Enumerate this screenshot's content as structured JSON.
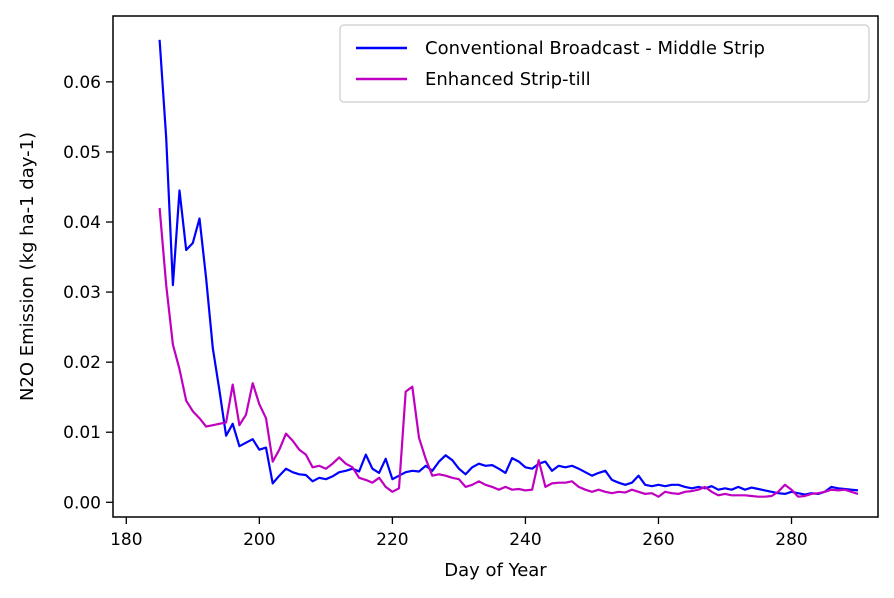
{
  "chart_data": {
    "type": "line",
    "xlabel": "Day of Year",
    "ylabel": "N2O Emission (kg ha-1 day-1)",
    "xlim": [
      178,
      293
    ],
    "ylim": [
      -0.0021,
      0.0694
    ],
    "xticks": [
      180,
      200,
      220,
      240,
      260,
      280
    ],
    "yticks": [
      0.0,
      0.01,
      0.02,
      0.03,
      0.04,
      0.05,
      0.06
    ],
    "ytick_labels": [
      "0.00",
      "0.01",
      "0.02",
      "0.03",
      "0.04",
      "0.05",
      "0.06"
    ],
    "legend_position": "top-right",
    "grid": false,
    "series": [
      {
        "name": "Conventional Broadcast - Middle Strip",
        "color": "#0000ff",
        "x": [
          185,
          186,
          187,
          188,
          189,
          190,
          191,
          192,
          193,
          194,
          195,
          196,
          197,
          198,
          199,
          200,
          201,
          202,
          203,
          204,
          205,
          206,
          207,
          208,
          209,
          210,
          211,
          212,
          213,
          214,
          215,
          216,
          217,
          218,
          219,
          220,
          221,
          222,
          223,
          224,
          225,
          226,
          227,
          228,
          229,
          230,
          231,
          232,
          233,
          234,
          235,
          236,
          237,
          238,
          239,
          240,
          241,
          242,
          243,
          244,
          245,
          246,
          247,
          248,
          249,
          250,
          251,
          252,
          253,
          254,
          255,
          256,
          257,
          258,
          259,
          260,
          261,
          262,
          263,
          264,
          265,
          266,
          267,
          268,
          269,
          270,
          271,
          272,
          273,
          274,
          275,
          276,
          277,
          278,
          279,
          280,
          281,
          282,
          283,
          284,
          285,
          286,
          287,
          288,
          289,
          290
        ],
        "y": [
          0.066,
          0.052,
          0.031,
          0.0445,
          0.036,
          0.037,
          0.0405,
          0.032,
          0.022,
          0.016,
          0.0095,
          0.0112,
          0.008,
          0.0085,
          0.009,
          0.0075,
          0.0078,
          0.0027,
          0.0038,
          0.0048,
          0.0043,
          0.004,
          0.0039,
          0.003,
          0.0035,
          0.0033,
          0.0037,
          0.0043,
          0.0045,
          0.0048,
          0.0044,
          0.0068,
          0.0048,
          0.0042,
          0.0062,
          0.0033,
          0.0038,
          0.0043,
          0.0045,
          0.0044,
          0.0052,
          0.0045,
          0.0058,
          0.0067,
          0.006,
          0.0048,
          0.004,
          0.005,
          0.0055,
          0.0052,
          0.0053,
          0.0048,
          0.0042,
          0.0063,
          0.0058,
          0.005,
          0.0048,
          0.0055,
          0.0058,
          0.0045,
          0.0052,
          0.005,
          0.0052,
          0.0048,
          0.0043,
          0.0038,
          0.0042,
          0.0045,
          0.0032,
          0.0028,
          0.0025,
          0.0028,
          0.0038,
          0.0025,
          0.0023,
          0.0025,
          0.0023,
          0.0025,
          0.0025,
          0.0022,
          0.002,
          0.0022,
          0.002,
          0.0023,
          0.0018,
          0.002,
          0.0018,
          0.0022,
          0.0018,
          0.0021,
          0.0019,
          0.0017,
          0.0015,
          0.0013,
          0.0012,
          0.0015,
          0.0013,
          0.0011,
          0.0013,
          0.0012,
          0.0015,
          0.0022,
          0.002,
          0.0019,
          0.0018,
          0.0017
        ]
      },
      {
        "name": "Enhanced Strip-till",
        "color": "#c000c0",
        "x": [
          185,
          186,
          187,
          188,
          189,
          190,
          191,
          192,
          193,
          194,
          195,
          196,
          197,
          198,
          199,
          200,
          201,
          202,
          203,
          204,
          205,
          206,
          207,
          208,
          209,
          210,
          211,
          212,
          213,
          214,
          215,
          216,
          217,
          218,
          219,
          220,
          221,
          222,
          223,
          224,
          225,
          226,
          227,
          228,
          229,
          230,
          231,
          232,
          233,
          234,
          235,
          236,
          237,
          238,
          239,
          240,
          241,
          242,
          243,
          244,
          245,
          246,
          247,
          248,
          249,
          250,
          251,
          252,
          253,
          254,
          255,
          256,
          257,
          258,
          259,
          260,
          261,
          262,
          263,
          264,
          265,
          266,
          267,
          268,
          269,
          270,
          271,
          272,
          273,
          274,
          275,
          276,
          277,
          278,
          279,
          280,
          281,
          282,
          283,
          284,
          285,
          286,
          287,
          288,
          289,
          290
        ],
        "y": [
          0.042,
          0.031,
          0.0225,
          0.019,
          0.0145,
          0.013,
          0.012,
          0.0108,
          0.011,
          0.0112,
          0.0114,
          0.0168,
          0.011,
          0.0125,
          0.017,
          0.014,
          0.012,
          0.0058,
          0.0075,
          0.0098,
          0.0088,
          0.0075,
          0.0068,
          0.005,
          0.0052,
          0.0048,
          0.0055,
          0.0064,
          0.0055,
          0.005,
          0.0035,
          0.0032,
          0.0028,
          0.0035,
          0.0022,
          0.0015,
          0.002,
          0.0158,
          0.0165,
          0.0092,
          0.0062,
          0.0038,
          0.004,
          0.0038,
          0.0035,
          0.0033,
          0.0022,
          0.0025,
          0.003,
          0.0025,
          0.0022,
          0.0018,
          0.0022,
          0.0018,
          0.0019,
          0.0017,
          0.0018,
          0.006,
          0.0022,
          0.0027,
          0.0028,
          0.0028,
          0.003,
          0.0022,
          0.0018,
          0.0015,
          0.0018,
          0.0015,
          0.0013,
          0.0015,
          0.0014,
          0.0018,
          0.0015,
          0.0012,
          0.0013,
          0.0008,
          0.0015,
          0.0013,
          0.0012,
          0.0015,
          0.0016,
          0.0018,
          0.0022,
          0.0015,
          0.001,
          0.0012,
          0.001,
          0.001,
          0.001,
          0.0009,
          0.0008,
          0.0008,
          0.0009,
          0.0015,
          0.0025,
          0.0018,
          0.0008,
          0.0009,
          0.0012,
          0.0013,
          0.0015,
          0.0018,
          0.0017,
          0.0018,
          0.0015,
          0.0012
        ]
      }
    ]
  }
}
